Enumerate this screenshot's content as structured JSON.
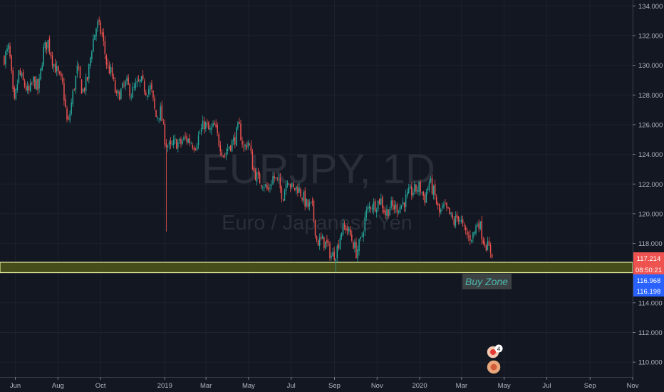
{
  "watermark": {
    "symbol": "EURJPY, 1D",
    "name": "Euro / Japanese Yen"
  },
  "annotation": {
    "label": "Buy Zone"
  },
  "price_badges": {
    "last": "117.214",
    "countdown": "08:50:21",
    "zone_top": "116.968",
    "zone_bottom": "116.198"
  },
  "events": {
    "badge_count": "4"
  },
  "colors": {
    "up": "#26a69a",
    "down": "#ef5350",
    "zone_fill": "#4d5319",
    "zone_edge": "#e6ee9c",
    "background": "#131722"
  },
  "chart_data": {
    "type": "candlestick",
    "symbol": "EURJPY",
    "interval": "1D",
    "ylim": [
      109.0,
      134.4
    ],
    "y_ticks": [
      "110.000",
      "112.000",
      "114.000",
      "116.000",
      "118.000",
      "120.000",
      "122.000",
      "124.000",
      "126.000",
      "128.000",
      "130.000",
      "132.000",
      "134.000"
    ],
    "x_ticks": [
      "Jun",
      "Aug",
      "Oct",
      "2019",
      "Mar",
      "May",
      "Jul",
      "Sep",
      "Nov",
      "2020",
      "Mar",
      "May",
      "Jul",
      "Sep",
      "Nov"
    ],
    "series": [
      {
        "values": [
          [
            "2018-05-16",
            130.5
          ],
          [
            "2018-05-23",
            131.2
          ],
          [
            "2018-05-30",
            127.2
          ],
          [
            "2018-06-06",
            129.5
          ],
          [
            "2018-06-13",
            128.8
          ],
          [
            "2018-06-20",
            128.1
          ],
          [
            "2018-06-27",
            129.0
          ],
          [
            "2018-07-04",
            128.3
          ],
          [
            "2018-07-11",
            131.0
          ],
          [
            "2018-07-18",
            131.6
          ],
          [
            "2018-07-25",
            130.2
          ],
          [
            "2018-08-01",
            129.4
          ],
          [
            "2018-08-08",
            128.6
          ],
          [
            "2018-08-15",
            125.8
          ],
          [
            "2018-08-22",
            128.0
          ],
          [
            "2018-08-29",
            129.8
          ],
          [
            "2018-09-05",
            128.2
          ],
          [
            "2018-09-12",
            129.0
          ],
          [
            "2018-09-19",
            131.4
          ],
          [
            "2018-09-26",
            132.8
          ],
          [
            "2018-10-03",
            132.1
          ],
          [
            "2018-10-10",
            130.0
          ],
          [
            "2018-10-17",
            129.4
          ],
          [
            "2018-10-24",
            127.8
          ],
          [
            "2018-10-31",
            128.3
          ],
          [
            "2018-11-07",
            128.8
          ],
          [
            "2018-11-14",
            128.1
          ],
          [
            "2018-11-21",
            128.6
          ],
          [
            "2018-11-28",
            128.9
          ],
          [
            "2018-12-05",
            128.3
          ],
          [
            "2018-12-12",
            128.5
          ],
          [
            "2018-12-19",
            126.5
          ],
          [
            "2018-12-26",
            126.9
          ],
          [
            "2019-01-02",
            124.8
          ],
          [
            "2019-01-09",
            124.4
          ],
          [
            "2019-01-16",
            124.8
          ],
          [
            "2019-01-23",
            124.7
          ],
          [
            "2019-01-30",
            125.1
          ],
          [
            "2019-02-06",
            124.9
          ],
          [
            "2019-02-13",
            124.6
          ],
          [
            "2019-02-20",
            125.4
          ],
          [
            "2019-02-27",
            126.1
          ],
          [
            "2019-03-06",
            125.5
          ],
          [
            "2019-03-13",
            125.9
          ],
          [
            "2019-03-20",
            124.8
          ],
          [
            "2019-03-27",
            123.9
          ],
          [
            "2019-04-03",
            124.6
          ],
          [
            "2019-04-10",
            124.9
          ],
          [
            "2019-04-17",
            125.9
          ],
          [
            "2019-04-24",
            124.4
          ],
          [
            "2019-05-01",
            124.9
          ],
          [
            "2019-05-08",
            122.9
          ],
          [
            "2019-05-15",
            122.3
          ],
          [
            "2019-05-22",
            122.1
          ],
          [
            "2019-05-29",
            121.5
          ],
          [
            "2019-06-05",
            122.5
          ],
          [
            "2019-06-12",
            122.1
          ],
          [
            "2019-06-19",
            121.2
          ],
          [
            "2019-06-26",
            122.5
          ],
          [
            "2019-07-03",
            121.6
          ],
          [
            "2019-07-10",
            121.8
          ],
          [
            "2019-07-17",
            121.2
          ],
          [
            "2019-07-24",
            120.5
          ],
          [
            "2019-07-31",
            120.5
          ],
          [
            "2019-08-07",
            118.1
          ],
          [
            "2019-08-14",
            118.2
          ],
          [
            "2019-08-21",
            117.9
          ],
          [
            "2019-08-28",
            117.1
          ],
          [
            "2019-09-04",
            117.5
          ],
          [
            "2019-09-11",
            118.9
          ],
          [
            "2019-09-18",
            119.1
          ],
          [
            "2019-09-25",
            118.4
          ],
          [
            "2019-10-02",
            117.4
          ],
          [
            "2019-10-09",
            118.2
          ],
          [
            "2019-10-16",
            120.0
          ],
          [
            "2019-10-23",
            120.6
          ],
          [
            "2019-10-30",
            120.6
          ],
          [
            "2019-11-06",
            121.0
          ],
          [
            "2019-11-13",
            120.0
          ],
          [
            "2019-11-20",
            120.5
          ],
          [
            "2019-11-27",
            120.4
          ],
          [
            "2019-12-04",
            120.5
          ],
          [
            "2019-12-11",
            120.9
          ],
          [
            "2019-12-18",
            121.4
          ],
          [
            "2019-12-25",
            121.6
          ],
          [
            "2020-01-01",
            121.8
          ],
          [
            "2020-01-08",
            121.0
          ],
          [
            "2020-01-15",
            122.2
          ],
          [
            "2020-01-22",
            121.3
          ],
          [
            "2020-01-29",
            120.0
          ],
          [
            "2020-02-05",
            120.4
          ],
          [
            "2020-02-12",
            120.0
          ],
          [
            "2020-02-19",
            119.4
          ],
          [
            "2020-02-26",
            119.9
          ],
          [
            "2020-03-04",
            118.9
          ],
          [
            "2020-03-11",
            118.4
          ],
          [
            "2020-03-18",
            118.6
          ],
          [
            "2020-03-25",
            119.6
          ],
          [
            "2020-04-01",
            118.3
          ],
          [
            "2020-04-08",
            117.7
          ],
          [
            "2020-04-15",
            117.3
          ]
        ]
      }
    ]
  }
}
